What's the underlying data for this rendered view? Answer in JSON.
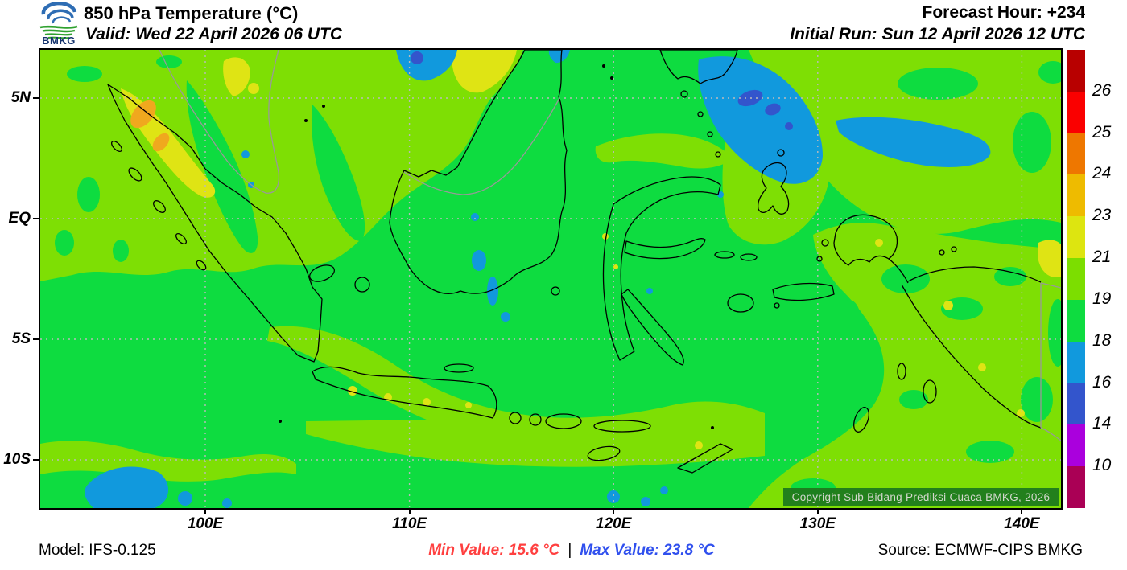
{
  "header": {
    "logo_text": "BMKG",
    "title": "850 hPa Temperature (°C)",
    "valid_label": "Valid: Wed 22 April 2026 06 UTC",
    "forecast_hour_label": "Forecast Hour: +234",
    "initial_run_label": "Initial Run: Sun 12 April 2026 12 UTC"
  },
  "map": {
    "copyright": "Copyright Sub Bidang Prediksi Cuaca BMKG, 2026",
    "x_tick_labels": [
      "100E",
      "110E",
      "120E",
      "130E",
      "140E"
    ],
    "y_tick_labels": [
      "5N",
      "EQ",
      "5S",
      "10S"
    ]
  },
  "colorbar": {
    "boundary_labels": [
      "26",
      "25",
      "24",
      "23",
      "21",
      "19",
      "18",
      "16",
      "14",
      "10"
    ],
    "segment_colors_top_to_bottom": [
      "#B80000",
      "#FA0000",
      "#EE7700",
      "#EEBB00",
      "#DDE510",
      "#7CDE00",
      "#0EDC40",
      "#1199DD",
      "#3355CC",
      "#AA00DD",
      "#AA0055"
    ]
  },
  "footer": {
    "model_label": "Model: IFS-0.125",
    "min_value_label": "Min Value: 15.6 °C",
    "separator": "|",
    "max_value_label": "Max Value: 23.8 °C",
    "source_label": "Source: ECMWF-CIPS BMKG",
    "min_value_color": "#FF4040",
    "max_value_color": "#3050EE"
  },
  "palette": {
    "map_green": "#0EDC40",
    "map_chartreuse": "#7EDF04",
    "map_yellow": "#DFE414",
    "map_orange": "#F0A81E",
    "map_light_blue": "#1199DD",
    "map_blue": "#3355CC",
    "coastline": "#000000",
    "foreign_border": "#999999",
    "gridline": "#BBBBBB",
    "copyright_bg": "#1E7B1E",
    "copyright_text": "#D8D8D8"
  },
  "chart_data": {
    "type": "heatmap",
    "title": "850 hPa Temperature (°C)",
    "valid_time": "Wed 22 April 2026 06 UTC",
    "initial_run": "Sun 12 April 2026 12 UTC",
    "forecast_hour": "+234",
    "model": "IFS-0.125",
    "source": "ECMWF-CIPS BMKG",
    "min_value_c": 15.6,
    "max_value_c": 23.8,
    "x_axis_ticks": [
      "100E",
      "110E",
      "120E",
      "130E",
      "140E"
    ],
    "y_axis_ticks": [
      "5N",
      "EQ",
      "5S",
      "10S"
    ],
    "scale_boundaries_c": [
      10,
      14,
      16,
      18,
      19,
      21,
      23,
      24,
      25,
      26
    ],
    "scale_colors_low_to_high": [
      "#AA0055",
      "#AA00DD",
      "#3355CC",
      "#1199DD",
      "#0EDC40",
      "#7CDE00",
      "#DDE510",
      "#EEBB00",
      "#EE7700",
      "#FA0000",
      "#B80000"
    ],
    "legend_position": "right",
    "grid": "dashed"
  }
}
